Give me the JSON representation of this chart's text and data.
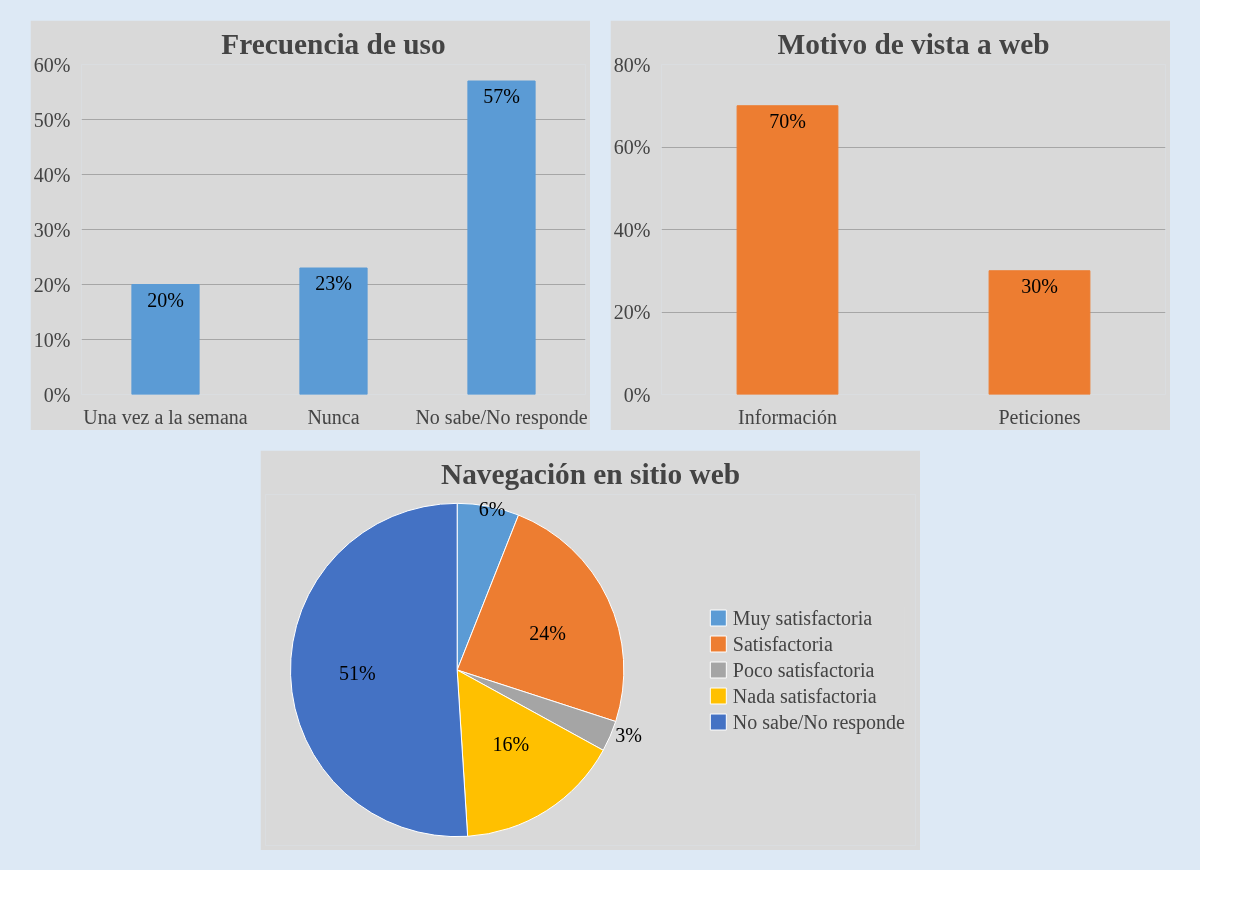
{
  "chart_data": [
    {
      "type": "bar",
      "title": "Frecuencia de uso",
      "categories": [
        "Una vez a la semana",
        "Nunca",
        "No sabe/No responde"
      ],
      "values": [
        20,
        23,
        57
      ],
      "color": "#5b9bd5",
      "ylim": [
        0,
        60
      ],
      "yticks": [
        {
          "value": 0,
          "label": "0%"
        },
        {
          "value": 10,
          "label": "10%"
        },
        {
          "value": 20,
          "label": "20%"
        },
        {
          "value": 30,
          "label": "30%"
        },
        {
          "value": 40,
          "label": "40%"
        },
        {
          "value": 50,
          "label": "50%"
        },
        {
          "value": 60,
          "label": "60%"
        }
      ],
      "value_labels": [
        "20%",
        "23%",
        "57%"
      ],
      "grid": "y"
    },
    {
      "type": "bar",
      "title": "Motivo de vista a web",
      "categories": [
        "Información",
        "Peticiones"
      ],
      "values": [
        70,
        30
      ],
      "color": "#ed7d31",
      "ylim": [
        0,
        80
      ],
      "yticks": [
        {
          "value": 0,
          "label": "0%"
        },
        {
          "value": 20,
          "label": "20%"
        },
        {
          "value": 40,
          "label": "40%"
        },
        {
          "value": 60,
          "label": "60%"
        },
        {
          "value": 80,
          "label": "80%"
        }
      ],
      "value_labels": [
        "70%",
        "30%"
      ],
      "grid": "y"
    },
    {
      "type": "pie",
      "title": "Navegación en sitio web",
      "categories": [
        "Muy satisfactoria",
        "Satisfactoria",
        "Poco satisfactoria",
        "Nada satisfactoria",
        "No sabe/No responde"
      ],
      "values": [
        6,
        24,
        3,
        16,
        51
      ],
      "colors": [
        "#5b9bd5",
        "#ed7d31",
        "#a5a5a5",
        "#ffc000",
        "#4472c4"
      ],
      "value_labels": [
        "6%",
        "24%",
        "3%",
        "16%",
        "51%"
      ],
      "legend": "right"
    }
  ]
}
